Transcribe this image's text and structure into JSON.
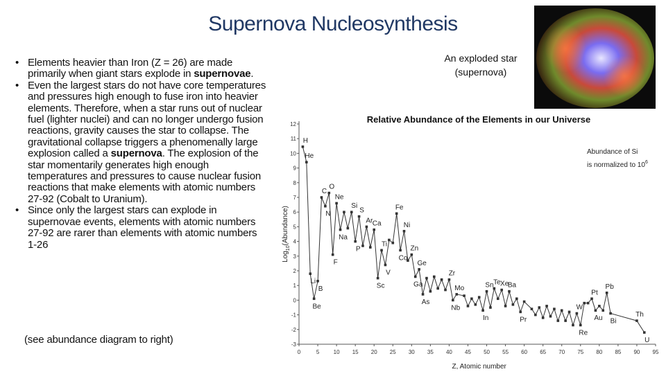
{
  "title": "Supernova Nucleosynthesis",
  "bullets": [
    [
      "Elements heavier than Iron (Z = 26) are made primarily when giant stars explode in ",
      {
        "text": "supernovae",
        "bold": true
      },
      "."
    ],
    [
      "Even the largest stars do not have core temperatures and pressures high enough to fuse iron into heavier elements. Therefore, when a star runs out of nuclear fuel (lighter nuclei) and can no longer undergo fusion reactions, gravity causes the star to collapse.  The gravitational collapse triggers a phenomenally large explosion called a ",
      {
        "text": "supernova",
        "bold": true
      },
      ".  The explosion of the star momentarily generates high enough temperatures and pressures to cause nuclear fusion reactions that make elements with atomic numbers 27-92 (Cobalt to Uranium)."
    ],
    [
      "Since only the largest stars can explode in supernovae events, elements with atomic numbers 27-92 are rarer than elements with atomic numbers 1-26"
    ]
  ],
  "note": "(see abundance diagram to right)",
  "image_caption": [
    "An exploded star",
    "(supernova)"
  ],
  "chart_data": {
    "type": "line",
    "title": "Relative Abundance of the Elements in our Universe",
    "xlabel": "Z, Atomic number",
    "ylabel": [
      "Log",
      "10",
      "(Abundance)"
    ],
    "annotation": {
      "lines": [
        "Abundance of Si",
        "is normalized to 10"
      ],
      "superscript": "6"
    },
    "color": "#333333",
    "xlim": [
      0,
      95
    ],
    "xticks": [
      0,
      5,
      10,
      15,
      20,
      25,
      30,
      35,
      40,
      45,
      50,
      55,
      60,
      65,
      70,
      75,
      80,
      85,
      90,
      95
    ],
    "ylim": [
      -3,
      12
    ],
    "yticks": [
      -3,
      -2,
      -1,
      0,
      1,
      2,
      3,
      4,
      5,
      6,
      7,
      8,
      9,
      10,
      11,
      12
    ],
    "x": [
      1,
      2,
      3,
      4,
      5,
      6,
      7,
      8,
      9,
      10,
      11,
      12,
      13,
      14,
      15,
      16,
      17,
      18,
      19,
      20,
      21,
      22,
      23,
      24,
      25,
      26,
      27,
      28,
      29,
      30,
      31,
      32,
      33,
      34,
      35,
      36,
      37,
      38,
      39,
      40,
      41,
      42,
      44,
      45,
      46,
      47,
      48,
      49,
      50,
      51,
      52,
      53,
      54,
      55,
      56,
      57,
      58,
      59,
      60,
      62,
      63,
      64,
      65,
      66,
      67,
      68,
      69,
      70,
      71,
      72,
      73,
      74,
      75,
      76,
      77,
      78,
      79,
      80,
      81,
      82,
      83,
      90,
      92
    ],
    "values": [
      10.45,
      9.4,
      1.8,
      0.1,
      1.3,
      7,
      6.4,
      7.3,
      3.1,
      6.6,
      4.8,
      6,
      4.9,
      6,
      4,
      5.7,
      3.7,
      5,
      3.6,
      4.8,
      1.5,
      3.4,
      2.4,
      4.1,
      3.9,
      5.9,
      3.4,
      4.7,
      2.7,
      3.1,
      1.6,
      2.1,
      0.4,
      1.5,
      0.6,
      1.6,
      0.8,
      1.4,
      0.7,
      1.4,
      0,
      0.4,
      0.3,
      -0.4,
      0.1,
      -0.3,
      0.2,
      -0.7,
      0.6,
      -0.5,
      0.8,
      0.1,
      0.7,
      -0.4,
      0.6,
      -0.3,
      0.1,
      -0.8,
      -0.1,
      -0.6,
      -1,
      -0.5,
      -1.2,
      -0.4,
      -1.1,
      -0.6,
      -1.4,
      -0.7,
      -1.4,
      -0.8,
      -1.7,
      -0.9,
      -1.7,
      -0.2,
      -0.2,
      0.1,
      -0.7,
      -0.4,
      -0.7,
      0.5,
      -0.9,
      -1.4,
      -2.2
    ],
    "labels": [
      "H",
      "He",
      "Li",
      "Be",
      "B",
      "C",
      "N",
      "O",
      "F",
      "Ne",
      "Na",
      null,
      null,
      "Si",
      "P",
      "S",
      null,
      "Ar",
      null,
      "Ca",
      "Sc",
      "Ti",
      "V",
      null,
      null,
      "Fe",
      "Co",
      "Ni",
      null,
      "Zn",
      "Ga",
      "Ge",
      "As",
      null,
      null,
      null,
      null,
      null,
      null,
      "Zr",
      "Nb",
      "Mo",
      null,
      null,
      null,
      null,
      null,
      "In",
      "Sn",
      null,
      "Te",
      null,
      "Xe",
      null,
      "Ba",
      null,
      null,
      "Pr",
      null,
      null,
      null,
      null,
      null,
      null,
      null,
      null,
      null,
      null,
      null,
      null,
      null,
      "W",
      "Re",
      null,
      null,
      "Pt",
      "Au",
      null,
      null,
      "Pb",
      "Bi",
      "Th",
      "U"
    ]
  }
}
